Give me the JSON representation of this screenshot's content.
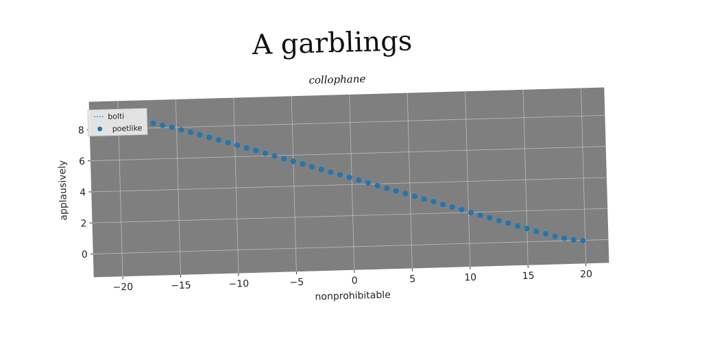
{
  "chart_data": {
    "type": "scatter",
    "title": "A garblings",
    "subtitle": "collophane",
    "xlabel": "nonprohibitable",
    "ylabel": "applausively",
    "xlim": [
      -22.5,
      22
    ],
    "ylim": [
      -1.5,
      9.8
    ],
    "xticks": [
      -20,
      -15,
      -10,
      -5,
      0,
      5,
      10,
      15,
      20
    ],
    "yticks": [
      0,
      2,
      4,
      6,
      8
    ],
    "grid": true,
    "legend_position": "top-left",
    "colors": {
      "axes_bg": "#7f7f7f",
      "grid": "#d0d0d0",
      "poetlike": "#1f77b4",
      "bolti": "#1f77b4"
    },
    "series": [
      {
        "name": "bolti",
        "marker": "line",
        "x": [],
        "y": []
      },
      {
        "name": "poetlike",
        "marker": "dot",
        "x": [
          -17,
          -16.2,
          -15.4,
          -14.6,
          -13.8,
          -13,
          -12.2,
          -11.4,
          -10.6,
          -9.8,
          -9,
          -8.2,
          -7.4,
          -6.6,
          -5.8,
          -5,
          -4.2,
          -3.4,
          -2.6,
          -1.8,
          -1,
          -0.2,
          0.6,
          1.4,
          2.2,
          3,
          3.8,
          4.6,
          5.4,
          6.2,
          7,
          7.8,
          8.6,
          9.4,
          10.2,
          11,
          11.8,
          12.6,
          13.4,
          14.2,
          15,
          15.8,
          16.6,
          17.4,
          18.2,
          19,
          19.8
        ],
        "y": [
          8.3,
          8.15,
          8.0,
          7.83,
          7.66,
          7.48,
          7.3,
          7.12,
          6.93,
          6.74,
          6.55,
          6.36,
          6.17,
          5.98,
          5.79,
          5.6,
          5.41,
          5.22,
          5.03,
          4.84,
          4.65,
          4.46,
          4.27,
          4.08,
          3.89,
          3.7,
          3.51,
          3.32,
          3.13,
          2.94,
          2.75,
          2.56,
          2.37,
          2.18,
          1.99,
          1.8,
          1.61,
          1.42,
          1.23,
          1.04,
          0.85,
          0.66,
          0.48,
          0.31,
          0.16,
          0.05,
          -0.02
        ]
      }
    ]
  }
}
